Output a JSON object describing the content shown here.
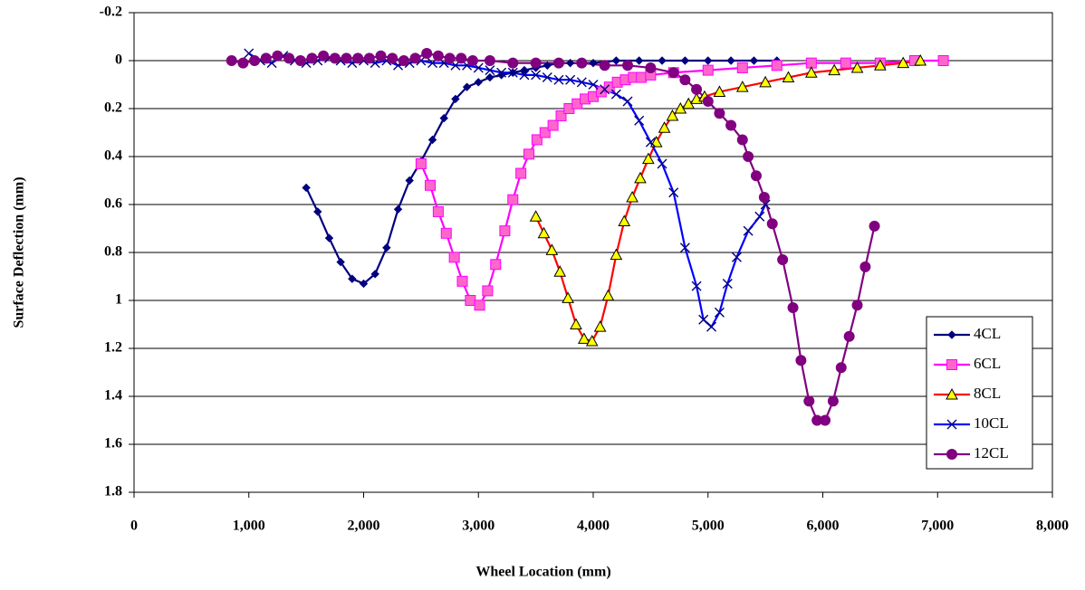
{
  "chart_data": {
    "type": "line",
    "x_label": "Wheel Location (mm)",
    "y_label": "Surface Deflection (mm)",
    "xlim": [
      0,
      8000
    ],
    "ylim": [
      -0.2,
      1.8
    ],
    "y_inverted": true,
    "grid": true,
    "legend": "right",
    "xticks": [
      0,
      {
        "value": 1000,
        "label": "1,000"
      },
      {
        "value": 2000,
        "label": "2,000"
      },
      {
        "value": 3000,
        "label": "3,000"
      },
      {
        "value": 4000,
        "label": "4,000"
      },
      {
        "value": 5000,
        "label": "5,000"
      },
      {
        "value": 6000,
        "label": "6,000"
      },
      {
        "value": 7000,
        "label": "7,000"
      },
      {
        "value": 8000,
        "label": "8,000"
      }
    ],
    "yticks": [
      -0.2,
      0,
      0.2,
      0.4,
      0.6,
      0.8,
      1,
      1.2,
      1.4,
      1.6,
      1.8
    ],
    "series": [
      {
        "name": "4CL",
        "color": "#000080",
        "marker": "diamond",
        "marker_fill": "#000080",
        "x": [
          1500,
          1600,
          1700,
          1800,
          1900,
          2000,
          2100,
          2200,
          2300,
          2400,
          2500,
          2600,
          2700,
          2800,
          2900,
          3000,
          3100,
          3200,
          3300,
          3400,
          3500,
          3600,
          3700,
          3800,
          3900,
          4000,
          4200,
          4400,
          4600,
          4800,
          5000,
          5200,
          5400,
          5600
        ],
        "values": [
          0.53,
          0.63,
          0.74,
          0.84,
          0.91,
          0.93,
          0.89,
          0.78,
          0.62,
          0.5,
          0.42,
          0.33,
          0.24,
          0.16,
          0.11,
          0.09,
          0.07,
          0.06,
          0.05,
          0.04,
          0.03,
          0.02,
          0.01,
          0.01,
          0.01,
          0.01,
          0,
          0,
          0,
          0,
          0,
          0,
          0,
          0
        ]
      },
      {
        "name": "6CL",
        "color": "#ff00ff",
        "marker": "square",
        "marker_fill": "#ff66cc",
        "x": [
          2500,
          2580,
          2650,
          2720,
          2790,
          2860,
          2930,
          3010,
          3080,
          3150,
          3230,
          3300,
          3370,
          3440,
          3510,
          3580,
          3650,
          3720,
          3790,
          3860,
          3930,
          4000,
          4070,
          4140,
          4210,
          4280,
          4350,
          4420,
          4500,
          4700,
          5000,
          5300,
          5600,
          5900,
          6200,
          6500,
          6800,
          7050
        ],
        "values": [
          0.43,
          0.52,
          0.63,
          0.72,
          0.82,
          0.92,
          1,
          1.02,
          0.96,
          0.85,
          0.71,
          0.58,
          0.47,
          0.39,
          0.33,
          0.3,
          0.27,
          0.23,
          0.2,
          0.18,
          0.16,
          0.15,
          0.13,
          0.11,
          0.09,
          0.08,
          0.07,
          0.07,
          0.06,
          0.05,
          0.04,
          0.03,
          0.02,
          0.01,
          0.01,
          0.01,
          0,
          0
        ]
      },
      {
        "name": "8CL",
        "color": "#ff0000",
        "marker": "triangle",
        "marker_fill": "#ffff00",
        "x": [
          3500,
          3570,
          3640,
          3710,
          3780,
          3850,
          3920,
          3990,
          4060,
          4130,
          4200,
          4270,
          4340,
          4410,
          4480,
          4550,
          4620,
          4690,
          4760,
          4830,
          4900,
          4970,
          5100,
          5300,
          5500,
          5700,
          5900,
          6100,
          6300,
          6500,
          6700,
          6850
        ],
        "values": [
          0.65,
          0.72,
          0.79,
          0.88,
          0.99,
          1.1,
          1.16,
          1.17,
          1.11,
          0.98,
          0.81,
          0.67,
          0.57,
          0.49,
          0.41,
          0.34,
          0.28,
          0.23,
          0.2,
          0.18,
          0.16,
          0.15,
          0.13,
          0.11,
          0.09,
          0.07,
          0.05,
          0.04,
          0.03,
          0.02,
          0.01,
          0
        ]
      },
      {
        "name": "10CL",
        "color": "#0000ff",
        "marker": "cross",
        "marker_fill": "#000080",
        "x": [
          1000,
          1100,
          1200,
          1300,
          1400,
          1500,
          1600,
          1700,
          1800,
          1900,
          2000,
          2100,
          2200,
          2300,
          2400,
          2500,
          2600,
          2700,
          2800,
          2900,
          3000,
          3100,
          3200,
          3300,
          3400,
          3500,
          3600,
          3700,
          3800,
          3900,
          4000,
          4100,
          4200,
          4300,
          4400,
          4500,
          4600,
          4700,
          4800,
          4900,
          4960,
          5030,
          5100,
          5170,
          5250,
          5350,
          5450,
          5500
        ],
        "values": [
          -0.03,
          0,
          0.01,
          -0.02,
          0,
          0.01,
          0,
          -0.01,
          0,
          0.01,
          0,
          0.01,
          0,
          0.02,
          0.01,
          0,
          0.01,
          0.01,
          0.02,
          0.02,
          0.03,
          0.04,
          0.05,
          0.05,
          0.06,
          0.06,
          0.07,
          0.08,
          0.08,
          0.09,
          0.1,
          0.12,
          0.14,
          0.17,
          0.25,
          0.34,
          0.43,
          0.55,
          0.78,
          0.94,
          1.08,
          1.11,
          1.05,
          0.93,
          0.82,
          0.71,
          0.65,
          0.6
        ]
      },
      {
        "name": "12CL",
        "color": "#800080",
        "marker": "circle",
        "marker_fill": "#800080",
        "x": [
          850,
          950,
          1050,
          1150,
          1250,
          1350,
          1450,
          1550,
          1650,
          1750,
          1850,
          1950,
          2050,
          2150,
          2250,
          2350,
          2450,
          2550,
          2650,
          2750,
          2850,
          2950,
          3100,
          3300,
          3500,
          3700,
          3900,
          4100,
          4300,
          4500,
          4700,
          4800,
          4900,
          5000,
          5100,
          5200,
          5300,
          5350,
          5420,
          5490,
          5560,
          5650,
          5740,
          5810,
          5880,
          5950,
          6020,
          6090,
          6160,
          6230,
          6300,
          6370,
          6450
        ],
        "values": [
          0,
          0.01,
          0,
          -0.01,
          -0.02,
          -0.01,
          0,
          -0.01,
          -0.02,
          -0.01,
          -0.01,
          -0.01,
          -0.01,
          -0.02,
          -0.01,
          0,
          -0.01,
          -0.03,
          -0.02,
          -0.01,
          -0.01,
          0,
          0,
          0.01,
          0.01,
          0.01,
          0.01,
          0.02,
          0.02,
          0.03,
          0.05,
          0.08,
          0.12,
          0.17,
          0.22,
          0.27,
          0.33,
          0.4,
          0.48,
          0.57,
          0.68,
          0.83,
          1.03,
          1.25,
          1.42,
          1.5,
          1.5,
          1.42,
          1.28,
          1.15,
          1.02,
          0.86,
          0.69
        ]
      }
    ]
  }
}
